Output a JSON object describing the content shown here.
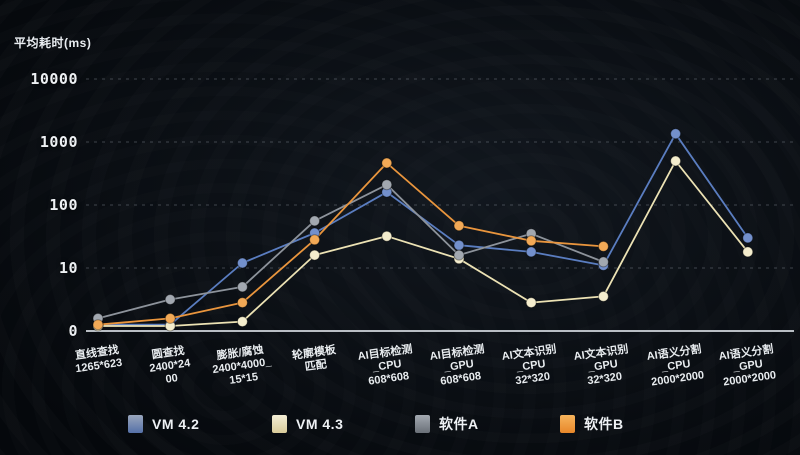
{
  "chart_data": {
    "type": "line",
    "title": "",
    "ylabel": "平均耗时(ms)",
    "y_scale": "log (0,10,100,1000,10000), values below 10 on linear 0-10 segment",
    "y_ticks": [
      0,
      10,
      100,
      1000,
      10000
    ],
    "grid": "dashed horizontal gridlines, solid baseline at 0, dark background",
    "legend_position": "bottom",
    "categories": [
      [
        "直线查找",
        "1265*623"
      ],
      [
        "圆查找",
        "2400*24",
        "00"
      ],
      [
        "膨胀/腐蚀",
        "2400*4000_",
        "15*15"
      ],
      [
        "轮廓模板",
        "匹配"
      ],
      [
        "AI目标检测",
        "_CPU",
        "608*608"
      ],
      [
        "AI目标检测",
        "_GPU",
        "608*608"
      ],
      [
        "AI文本识别",
        "_CPU",
        "32*320"
      ],
      [
        "AI文本识别",
        "_GPU",
        "32*320"
      ],
      [
        "AI语义分割",
        "_CPU",
        "2000*2000"
      ],
      [
        "AI语义分割",
        "_GPU",
        "2000*2000"
      ]
    ],
    "series": [
      {
        "name": "VM 4.2",
        "color": "#5a7dc0",
        "marker": "#7390cc",
        "values": [
          1,
          1,
          12,
          36,
          160,
          23,
          18,
          11,
          1350,
          30
        ]
      },
      {
        "name": "VM 4.3",
        "color": "#ece2b4",
        "marker": "#f4edcd",
        "values": [
          0.8,
          0.8,
          1.5,
          16,
          32,
          14,
          4.5,
          5.5,
          500,
          18
        ]
      },
      {
        "name": "软件A",
        "color": "#8d939b",
        "marker": "#a2a8b0",
        "values": [
          2,
          5,
          7,
          56,
          210,
          16,
          35,
          12.5,
          null,
          null
        ]
      },
      {
        "name": "软件B",
        "color": "#e9953d",
        "marker": "#f2a956",
        "values": [
          1,
          2,
          4.5,
          28,
          465,
          47,
          27,
          22,
          null,
          null
        ]
      }
    ]
  },
  "legend": {
    "items": [
      {
        "label": "VM 4.2",
        "swatch_top": "#9aa6bd",
        "swatch_bottom": "#5570a8"
      },
      {
        "label": "VM 4.3",
        "swatch_top": "#f4eed6",
        "swatch_bottom": "#d9cb9a"
      },
      {
        "label": "软件A",
        "swatch_top": "#a3a9b1",
        "swatch_bottom": "#6a7078"
      },
      {
        "label": "软件B",
        "swatch_top": "#f6b45c",
        "swatch_bottom": "#e8872a"
      }
    ]
  },
  "axis_text": {
    "y_tick_labels": [
      "0",
      "10",
      "100",
      "1000",
      "10000"
    ],
    "baseline_color": "#b9bec4",
    "gridline_color": "rgba(150,158,168,0.38)"
  }
}
